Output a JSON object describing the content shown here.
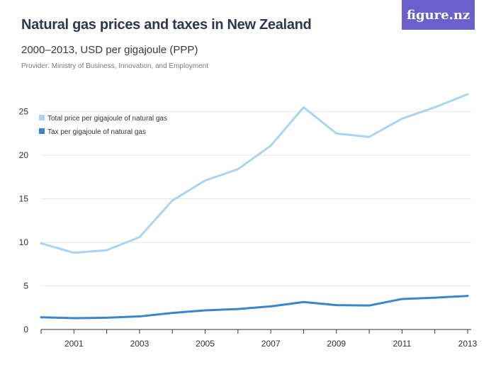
{
  "header": {
    "title": "Natural gas prices and taxes in New Zealand",
    "subtitle": "2000–2013, USD per gigajoule (PPP)",
    "provider": "Provider: Ministry of Business, Innovation, and Employment",
    "logo": "figure.nz"
  },
  "colors": {
    "total_price": "#a9d4f2",
    "tax": "#3a86c8",
    "grid": "#e6e6e6",
    "axis": "#333333",
    "logo_bg": "#6a60cc"
  },
  "chart_data": {
    "type": "line",
    "x": [
      2000,
      2001,
      2002,
      2003,
      2004,
      2005,
      2006,
      2007,
      2008,
      2009,
      2010,
      2011,
      2012,
      2013
    ],
    "series": [
      {
        "name": "Total price per gigajoule of natural gas",
        "values": [
          9.9,
          8.8,
          9.1,
          10.6,
          14.8,
          17.1,
          18.4,
          21.1,
          25.5,
          22.5,
          22.1,
          24.2,
          25.5,
          27.0
        ]
      },
      {
        "name": "Tax per gigajoule of natural gas",
        "values": [
          1.4,
          1.3,
          1.35,
          1.5,
          1.9,
          2.2,
          2.35,
          2.65,
          3.15,
          2.8,
          2.75,
          3.5,
          3.65,
          3.85
        ]
      }
    ],
    "xticks": [
      "2001",
      "2003",
      "2005",
      "2007",
      "2009",
      "2011",
      "2013"
    ],
    "yticks": [
      "0",
      "5",
      "10",
      "15",
      "20",
      "25"
    ],
    "ylim": [
      0,
      27
    ],
    "xlim": [
      2000,
      2013
    ],
    "grid": true,
    "legend_position": "top-left"
  }
}
